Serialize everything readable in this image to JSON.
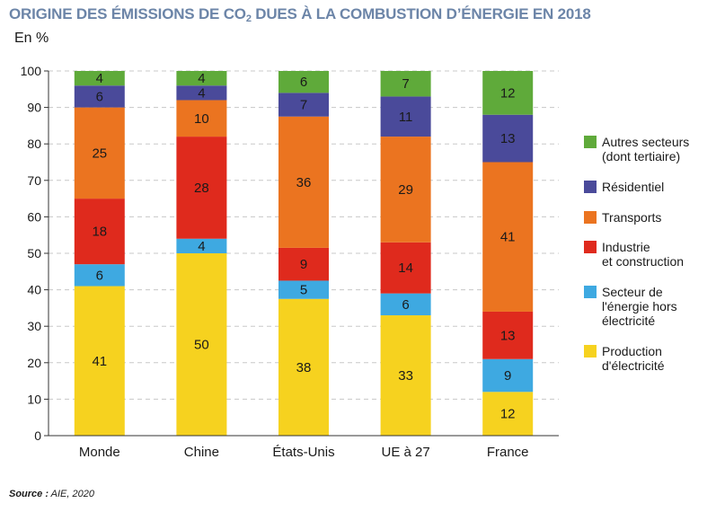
{
  "title": {
    "part1": "ORIGINE DES ÉMISSIONS DE CO",
    "subscript": "2",
    "part2": " DUES À LA COMBUSTION D’ÉNERGIE EN 2018"
  },
  "unit_label": "En %",
  "source": {
    "label": "Source :",
    "text": " AIE, 2020"
  },
  "chart_data": {
    "type": "bar",
    "stacked": true,
    "categories": [
      "Monde",
      "Chine",
      "États-Unis",
      "UE à 27",
      "France"
    ],
    "ylim": [
      0,
      100
    ],
    "yticks": [
      "0",
      "10",
      "20",
      "30",
      "40",
      "50",
      "60",
      "70",
      "80",
      "90",
      "100"
    ],
    "grid": "horizontal dashed",
    "legend_position": "right",
    "series": [
      {
        "name": "Production\nd'électricité",
        "color": "#f6d21f",
        "values": [
          41,
          50,
          38,
          33,
          12
        ]
      },
      {
        "name": "Secteur de\nl'énergie hors\nélectricité",
        "color": "#3ea9e1",
        "values": [
          6,
          4,
          5,
          6,
          9
        ]
      },
      {
        "name": "Industrie\net construction",
        "color": "#df2a1d",
        "values": [
          18,
          28,
          9,
          14,
          13
        ]
      },
      {
        "name": "Transports",
        "color": "#eb7420",
        "values": [
          25,
          10,
          36,
          29,
          41
        ]
      },
      {
        "name": "Résidentiel",
        "color": "#4a4a9a",
        "values": [
          6,
          4,
          7,
          11,
          13
        ]
      },
      {
        "name": "Autres secteurs\n(dont tertiaire)",
        "color": "#5faa3a",
        "values": [
          4,
          4,
          6,
          7,
          12
        ]
      }
    ],
    "stack_tops": {
      "Monde": [
        41,
        47,
        65,
        90,
        96,
        100
      ],
      "Chine": [
        50,
        54,
        82,
        92,
        96,
        100
      ],
      "États-Unis": [
        37.5,
        42.5,
        51.5,
        87.5,
        94,
        100
      ],
      "UE à 27": [
        33,
        39,
        53,
        82,
        93,
        100
      ],
      "France": [
        12,
        21,
        34,
        75,
        88,
        100
      ]
    }
  }
}
